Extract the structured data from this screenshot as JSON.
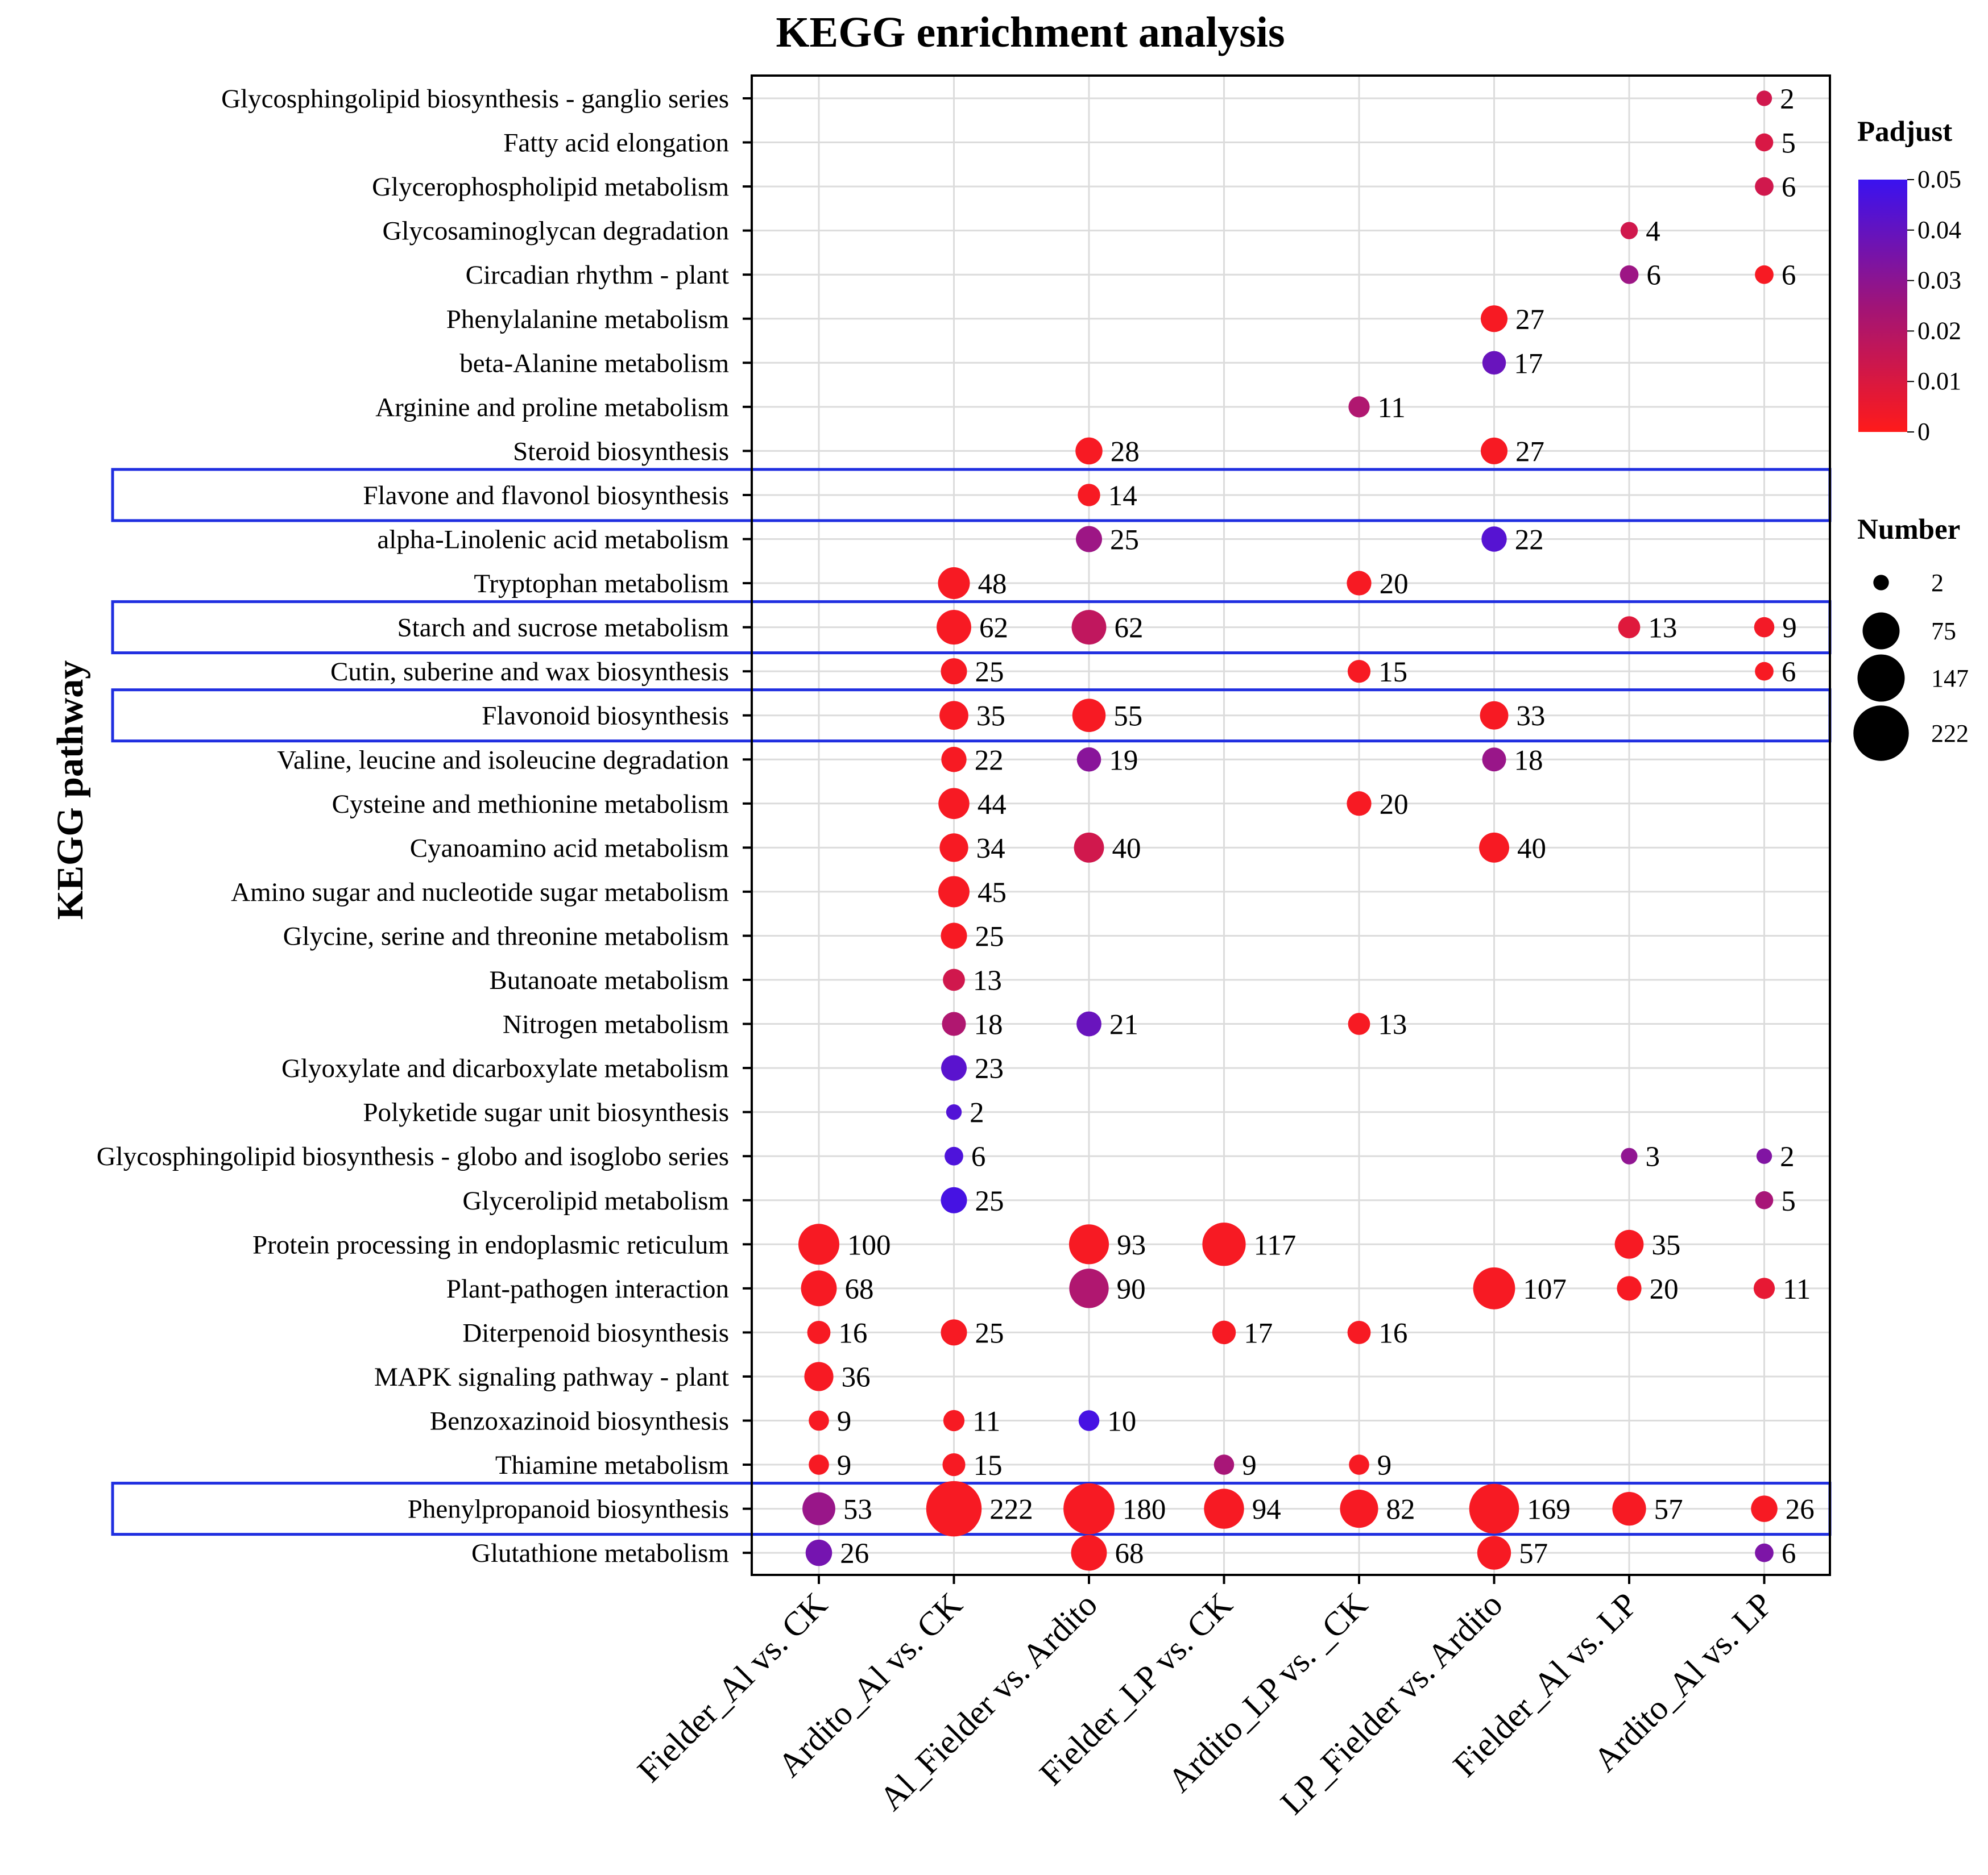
{
  "chart_data": {
    "type": "scatter",
    "title": "KEGG enrichment analysis",
    "ylabel": "KEGG pathway",
    "xlabel": "",
    "categories": [
      "Fielder_Al vs. CK",
      "Ardito_Al vs. CK",
      "Al_Fielder vs. Ardito",
      "Fielder_LP vs. CK",
      "Ardito_LP vs. _CK",
      "LP_Fielder vs. Ardito",
      "Fielder_Al vs. LP",
      "Ardito_Al vs. LP"
    ],
    "pathways": [
      "Glycosphingolipid biosynthesis - ganglio series",
      "Fatty acid elongation",
      "Glycerophospholipid metabolism",
      "Glycosaminoglycan degradation",
      "Circadian rhythm - plant",
      "Phenylalanine metabolism",
      "beta-Alanine metabolism",
      "Arginine and proline metabolism",
      "Steroid biosynthesis",
      "Flavone and flavonol biosynthesis",
      "alpha-Linolenic acid metabolism",
      "Tryptophan metabolism",
      "Starch and sucrose metabolism",
      "Cutin, suberine and wax biosynthesis",
      "Flavonoid biosynthesis",
      "Valine, leucine and isoleucine degradation",
      "Cysteine and methionine metabolism",
      "Cyanoamino acid metabolism",
      "Amino sugar and nucleotide sugar metabolism",
      "Glycine, serine and threonine metabolism",
      "Butanoate metabolism",
      "Nitrogen metabolism",
      "Glyoxylate and dicarboxylate metabolism",
      "Polyketide sugar unit biosynthesis",
      "Glycosphingolipid biosynthesis - globo and isoglobo series",
      "Glycerolipid metabolism",
      "Protein processing in endoplasmic reticulum",
      "Plant-pathogen interaction",
      "Diterpenoid biosynthesis",
      "MAPK signaling pathway - plant",
      "Benzoxazinoid biosynthesis",
      "Thiamine metabolism",
      "Phenylpropanoid biosynthesis",
      "Glutathione metabolism"
    ],
    "highlighted_pathways": [
      "Flavone and flavonol biosynthesis",
      "Starch and sucrose metabolism",
      "Flavonoid biosynthesis",
      "Phenylpropanoid biosynthesis"
    ],
    "highlight_color": "#1f2ee0",
    "points": [
      {
        "pathway": 0,
        "group": 7,
        "number": 2,
        "padjust": 0.012
      },
      {
        "pathway": 1,
        "group": 7,
        "number": 5,
        "padjust": 0.01
      },
      {
        "pathway": 2,
        "group": 7,
        "number": 6,
        "padjust": 0.012
      },
      {
        "pathway": 3,
        "group": 6,
        "number": 4,
        "padjust": 0.012
      },
      {
        "pathway": 4,
        "group": 6,
        "number": 6,
        "padjust": 0.025
      },
      {
        "pathway": 4,
        "group": 7,
        "number": 6,
        "padjust": 0.002
      },
      {
        "pathway": 5,
        "group": 5,
        "number": 27,
        "padjust": 0.002
      },
      {
        "pathway": 6,
        "group": 5,
        "number": 17,
        "padjust": 0.038
      },
      {
        "pathway": 7,
        "group": 4,
        "number": 11,
        "padjust": 0.02
      },
      {
        "pathway": 8,
        "group": 2,
        "number": 28,
        "padjust": 0.002
      },
      {
        "pathway": 8,
        "group": 5,
        "number": 27,
        "padjust": 0.002
      },
      {
        "pathway": 9,
        "group": 2,
        "number": 14,
        "padjust": 0.002
      },
      {
        "pathway": 10,
        "group": 2,
        "number": 25,
        "padjust": 0.025
      },
      {
        "pathway": 10,
        "group": 5,
        "number": 22,
        "padjust": 0.043
      },
      {
        "pathway": 11,
        "group": 1,
        "number": 48,
        "padjust": 0.002
      },
      {
        "pathway": 11,
        "group": 4,
        "number": 20,
        "padjust": 0.002
      },
      {
        "pathway": 12,
        "group": 1,
        "number": 62,
        "padjust": 0.002
      },
      {
        "pathway": 12,
        "group": 2,
        "number": 62,
        "padjust": 0.016
      },
      {
        "pathway": 12,
        "group": 6,
        "number": 13,
        "padjust": 0.008
      },
      {
        "pathway": 12,
        "group": 7,
        "number": 9,
        "padjust": 0.003
      },
      {
        "pathway": 13,
        "group": 1,
        "number": 25,
        "padjust": 0.002
      },
      {
        "pathway": 13,
        "group": 4,
        "number": 15,
        "padjust": 0.002
      },
      {
        "pathway": 13,
        "group": 7,
        "number": 6,
        "padjust": 0.002
      },
      {
        "pathway": 14,
        "group": 1,
        "number": 35,
        "padjust": 0.002
      },
      {
        "pathway": 14,
        "group": 2,
        "number": 55,
        "padjust": 0.002
      },
      {
        "pathway": 14,
        "group": 5,
        "number": 33,
        "padjust": 0.002
      },
      {
        "pathway": 15,
        "group": 1,
        "number": 22,
        "padjust": 0.002
      },
      {
        "pathway": 15,
        "group": 2,
        "number": 19,
        "padjust": 0.03
      },
      {
        "pathway": 15,
        "group": 5,
        "number": 18,
        "padjust": 0.026
      },
      {
        "pathway": 16,
        "group": 1,
        "number": 44,
        "padjust": 0.002
      },
      {
        "pathway": 16,
        "group": 4,
        "number": 20,
        "padjust": 0.002
      },
      {
        "pathway": 17,
        "group": 1,
        "number": 34,
        "padjust": 0.002
      },
      {
        "pathway": 17,
        "group": 2,
        "number": 40,
        "padjust": 0.012
      },
      {
        "pathway": 17,
        "group": 5,
        "number": 40,
        "padjust": 0.002
      },
      {
        "pathway": 18,
        "group": 1,
        "number": 45,
        "padjust": 0.002
      },
      {
        "pathway": 19,
        "group": 1,
        "number": 25,
        "padjust": 0.002
      },
      {
        "pathway": 20,
        "group": 1,
        "number": 13,
        "padjust": 0.012
      },
      {
        "pathway": 21,
        "group": 1,
        "number": 18,
        "padjust": 0.02
      },
      {
        "pathway": 21,
        "group": 2,
        "number": 21,
        "padjust": 0.038
      },
      {
        "pathway": 21,
        "group": 4,
        "number": 13,
        "padjust": 0.002
      },
      {
        "pathway": 22,
        "group": 1,
        "number": 23,
        "padjust": 0.042
      },
      {
        "pathway": 23,
        "group": 1,
        "number": 2,
        "padjust": 0.044
      },
      {
        "pathway": 24,
        "group": 1,
        "number": 6,
        "padjust": 0.045
      },
      {
        "pathway": 24,
        "group": 6,
        "number": 3,
        "padjust": 0.028
      },
      {
        "pathway": 24,
        "group": 7,
        "number": 2,
        "padjust": 0.032
      },
      {
        "pathway": 25,
        "group": 1,
        "number": 25,
        "padjust": 0.047
      },
      {
        "pathway": 25,
        "group": 7,
        "number": 5,
        "padjust": 0.022
      },
      {
        "pathway": 26,
        "group": 0,
        "number": 100,
        "padjust": 0.002
      },
      {
        "pathway": 26,
        "group": 2,
        "number": 93,
        "padjust": 0.002
      },
      {
        "pathway": 26,
        "group": 3,
        "number": 117,
        "padjust": 0.002
      },
      {
        "pathway": 26,
        "group": 6,
        "number": 35,
        "padjust": 0.002
      },
      {
        "pathway": 27,
        "group": 0,
        "number": 68,
        "padjust": 0.002
      },
      {
        "pathway": 27,
        "group": 2,
        "number": 90,
        "padjust": 0.02
      },
      {
        "pathway": 27,
        "group": 5,
        "number": 107,
        "padjust": 0.002
      },
      {
        "pathway": 27,
        "group": 6,
        "number": 20,
        "padjust": 0.002
      },
      {
        "pathway": 27,
        "group": 7,
        "number": 11,
        "padjust": 0.006
      },
      {
        "pathway": 28,
        "group": 0,
        "number": 16,
        "padjust": 0.002
      },
      {
        "pathway": 28,
        "group": 1,
        "number": 25,
        "padjust": 0.002
      },
      {
        "pathway": 28,
        "group": 3,
        "number": 17,
        "padjust": 0.002
      },
      {
        "pathway": 28,
        "group": 4,
        "number": 16,
        "padjust": 0.002
      },
      {
        "pathway": 29,
        "group": 0,
        "number": 36,
        "padjust": 0.002
      },
      {
        "pathway": 30,
        "group": 0,
        "number": 9,
        "padjust": 0.002
      },
      {
        "pathway": 30,
        "group": 1,
        "number": 11,
        "padjust": 0.002
      },
      {
        "pathway": 30,
        "group": 2,
        "number": 10,
        "padjust": 0.047
      },
      {
        "pathway": 31,
        "group": 0,
        "number": 9,
        "padjust": 0.002
      },
      {
        "pathway": 31,
        "group": 1,
        "number": 15,
        "padjust": 0.002
      },
      {
        "pathway": 31,
        "group": 3,
        "number": 9,
        "padjust": 0.022
      },
      {
        "pathway": 31,
        "group": 4,
        "number": 9,
        "padjust": 0.002
      },
      {
        "pathway": 32,
        "group": 0,
        "number": 53,
        "padjust": 0.026
      },
      {
        "pathway": 32,
        "group": 1,
        "number": 222,
        "padjust": 0.002
      },
      {
        "pathway": 32,
        "group": 2,
        "number": 180,
        "padjust": 0.002
      },
      {
        "pathway": 32,
        "group": 3,
        "number": 94,
        "padjust": 0.002
      },
      {
        "pathway": 32,
        "group": 4,
        "number": 82,
        "padjust": 0.002
      },
      {
        "pathway": 32,
        "group": 5,
        "number": 169,
        "padjust": 0.002
      },
      {
        "pathway": 32,
        "group": 6,
        "number": 57,
        "padjust": 0.002
      },
      {
        "pathway": 32,
        "group": 7,
        "number": 26,
        "padjust": 0.002
      },
      {
        "pathway": 33,
        "group": 0,
        "number": 26,
        "padjust": 0.035
      },
      {
        "pathway": 33,
        "group": 2,
        "number": 68,
        "padjust": 0.002
      },
      {
        "pathway": 33,
        "group": 5,
        "number": 57,
        "padjust": 0.002
      },
      {
        "pathway": 33,
        "group": 7,
        "number": 6,
        "padjust": 0.033
      }
    ],
    "color_legend": {
      "title": "Padjust",
      "ticks": [
        "0.05",
        "0.04",
        "0.03",
        "0.02",
        "0.01",
        "0"
      ],
      "range": [
        0,
        0.05
      ],
      "low_color": "#ff1a1a",
      "high_color": "#3a12f0"
    },
    "size_legend": {
      "title": "Number",
      "values": [
        2,
        75,
        147,
        222
      ],
      "labels": [
        "2",
        "75",
        "147",
        "222"
      ]
    },
    "grid": true
  }
}
